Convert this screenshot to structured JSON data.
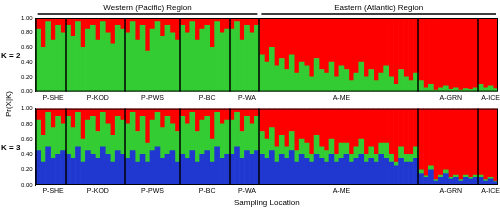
{
  "chart_data": [
    {
      "type": "bar",
      "title": "K = 2",
      "stacked": true,
      "grid": false,
      "y_label": "Pr(X|K)",
      "regions": [
        {
          "label": "Western (Pacific) Region",
          "groups": 5
        },
        {
          "label": "Eastern (Atlantic) Region",
          "groups": 3
        }
      ],
      "groups": [
        {
          "label": "P-SHE",
          "count": 6
        },
        {
          "label": "P-KOD",
          "count": 12
        },
        {
          "label": "P-PWS",
          "count": 11
        },
        {
          "label": "P-BC",
          "count": 10
        },
        {
          "label": "P-WA",
          "count": 6
        },
        {
          "label": "A-ME",
          "count": 32
        },
        {
          "label": "A-GRN",
          "count": 12
        },
        {
          "label": "A-ICE",
          "count": 4
        }
      ],
      "ylim": [
        0,
        1
      ],
      "yticks": [
        {
          "value": 0,
          "label": "0.00"
        },
        {
          "value": 0.2,
          "label": "0.20"
        },
        {
          "value": 0.4,
          "label": "0.40"
        },
        {
          "value": 0.6,
          "label": "0.60"
        },
        {
          "value": 0.8,
          "label": "0.80"
        },
        {
          "value": 1,
          "label": "1.00"
        }
      ],
      "series": [
        {
          "color": "#33cc33",
          "values": [
            0.85,
            0.6,
            0.95,
            0.7,
            0.9,
            0.8,
            0.9,
            0.75,
            0.95,
            0.6,
            0.85,
            0.9,
            0.7,
            0.95,
            0.8,
            0.65,
            0.9,
            0.85,
            0.8,
            0.95,
            0.7,
            0.9,
            0.55,
            0.85,
            0.95,
            0.75,
            0.9,
            0.8,
            0.7,
            0.9,
            0.8,
            0.95,
            0.7,
            0.85,
            0.9,
            0.6,
            0.95,
            0.8,
            0.85,
            0.85,
            0.95,
            0.7,
            0.9,
            0.8,
            0.9,
            0.5,
            0.4,
            0.6,
            0.35,
            0.45,
            0.3,
            0.5,
            0.25,
            0.4,
            0.35,
            0.2,
            0.45,
            0.3,
            0.25,
            0.4,
            0.2,
            0.35,
            0.3,
            0.15,
            0.25,
            0.4,
            0.2,
            0.3,
            0.15,
            0.25,
            0.35,
            0.2,
            0.1,
            0.3,
            0.2,
            0.15,
            0.25,
            0.15,
            0.05,
            0.1,
            0.02,
            0.05,
            0.08,
            0.03,
            0.05,
            0.02,
            0.04,
            0.03,
            0.05,
            0.1,
            0.05,
            0.08,
            0.04
          ]
        },
        {
          "color": "#ff0000",
          "values": [
            0.15,
            0.4,
            0.05,
            0.3,
            0.1,
            0.2,
            0.1,
            0.25,
            0.05,
            0.4,
            0.15,
            0.1,
            0.3,
            0.05,
            0.2,
            0.35,
            0.1,
            0.15,
            0.2,
            0.05,
            0.3,
            0.1,
            0.45,
            0.15,
            0.05,
            0.25,
            0.1,
            0.2,
            0.3,
            0.1,
            0.2,
            0.05,
            0.3,
            0.15,
            0.1,
            0.4,
            0.05,
            0.2,
            0.15,
            0.15,
            0.05,
            0.3,
            0.1,
            0.2,
            0.1,
            0.5,
            0.6,
            0.4,
            0.65,
            0.55,
            0.7,
            0.5,
            0.75,
            0.6,
            0.65,
            0.8,
            0.55,
            0.7,
            0.75,
            0.6,
            0.8,
            0.65,
            0.7,
            0.85,
            0.75,
            0.6,
            0.8,
            0.7,
            0.85,
            0.75,
            0.65,
            0.8,
            0.9,
            0.7,
            0.8,
            0.85,
            0.75,
            0.85,
            0.95,
            0.9,
            0.98,
            0.95,
            0.92,
            0.97,
            0.95,
            0.98,
            0.96,
            0.97,
            0.95,
            0.9,
            0.95,
            0.92,
            0.96
          ]
        }
      ]
    },
    {
      "type": "bar",
      "title": "K = 3",
      "stacked": true,
      "grid": false,
      "x_label": "Sampling Location",
      "groups": [
        {
          "label": "P-SHE",
          "count": 6
        },
        {
          "label": "P-KOD",
          "count": 12
        },
        {
          "label": "P-PWS",
          "count": 11
        },
        {
          "label": "P-BC",
          "count": 10
        },
        {
          "label": "P-WA",
          "count": 6
        },
        {
          "label": "A-ME",
          "count": 32
        },
        {
          "label": "A-GRN",
          "count": 12
        },
        {
          "label": "A-ICE",
          "count": 4
        }
      ],
      "ylim": [
        0,
        1
      ],
      "yticks": [
        {
          "value": 0,
          "label": "0.00"
        },
        {
          "value": 0.2,
          "label": "0.20"
        },
        {
          "value": 0.4,
          "label": "0.40"
        },
        {
          "value": 0.6,
          "label": "0.60"
        },
        {
          "value": 0.8,
          "label": "0.80"
        },
        {
          "value": 1,
          "label": "1.00"
        }
      ],
      "series": [
        {
          "color": "#2038d0",
          "values": [
            0.45,
            0.3,
            0.5,
            0.35,
            0.4,
            0.45,
            0.4,
            0.35,
            0.5,
            0.3,
            0.45,
            0.4,
            0.35,
            0.5,
            0.4,
            0.3,
            0.45,
            0.4,
            0.35,
            0.45,
            0.3,
            0.4,
            0.3,
            0.45,
            0.5,
            0.35,
            0.4,
            0.45,
            0.3,
            0.4,
            0.35,
            0.45,
            0.3,
            0.4,
            0.45,
            0.3,
            0.5,
            0.35,
            0.4,
            0.4,
            0.5,
            0.35,
            0.45,
            0.4,
            0.45,
            0.4,
            0.35,
            0.45,
            0.3,
            0.4,
            0.35,
            0.45,
            0.3,
            0.4,
            0.35,
            0.3,
            0.4,
            0.35,
            0.3,
            0.4,
            0.3,
            0.35,
            0.4,
            0.3,
            0.35,
            0.4,
            0.3,
            0.35,
            0.3,
            0.4,
            0.35,
            0.3,
            0.25,
            0.35,
            0.3,
            0.3,
            0.35,
            0.15,
            0.1,
            0.2,
            0.05,
            0.1,
            0.15,
            0.08,
            0.1,
            0.05,
            0.1,
            0.08,
            0.1,
            0.1,
            0.05,
            0.08,
            0.04
          ]
        },
        {
          "color": "#33cc33",
          "values": [
            0.4,
            0.35,
            0.45,
            0.4,
            0.5,
            0.35,
            0.5,
            0.4,
            0.45,
            0.3,
            0.4,
            0.5,
            0.35,
            0.45,
            0.4,
            0.35,
            0.45,
            0.45,
            0.45,
            0.5,
            0.4,
            0.5,
            0.25,
            0.4,
            0.45,
            0.4,
            0.5,
            0.35,
            0.4,
            0.5,
            0.45,
            0.5,
            0.4,
            0.45,
            0.45,
            0.3,
            0.45,
            0.45,
            0.45,
            0.45,
            0.45,
            0.35,
            0.45,
            0.4,
            0.45,
            0.3,
            0.25,
            0.3,
            0.2,
            0.25,
            0.15,
            0.25,
            0.15,
            0.2,
            0.2,
            0.1,
            0.25,
            0.15,
            0.15,
            0.2,
            0.1,
            0.2,
            0.15,
            0.1,
            0.15,
            0.2,
            0.1,
            0.15,
            0.1,
            0.15,
            0.2,
            0.1,
            0.05,
            0.15,
            0.1,
            0.1,
            0.15,
            0.05,
            0.02,
            0.05,
            0.02,
            0.03,
            0.05,
            0.02,
            0.03,
            0.02,
            0.03,
            0.02,
            0.03,
            0.03,
            0.02,
            0.02,
            0.01
          ]
        },
        {
          "color": "#ff0000",
          "values": [
            0.15,
            0.35,
            0.05,
            0.25,
            0.1,
            0.2,
            0.1,
            0.25,
            0.05,
            0.4,
            0.15,
            0.1,
            0.3,
            0.05,
            0.2,
            0.35,
            0.1,
            0.15,
            0.2,
            0.05,
            0.3,
            0.1,
            0.45,
            0.15,
            0.05,
            0.25,
            0.1,
            0.2,
            0.3,
            0.1,
            0.2,
            0.05,
            0.3,
            0.15,
            0.1,
            0.4,
            0.05,
            0.2,
            0.15,
            0.15,
            0.05,
            0.3,
            0.1,
            0.2,
            0.1,
            0.3,
            0.4,
            0.25,
            0.5,
            0.35,
            0.5,
            0.3,
            0.55,
            0.4,
            0.45,
            0.6,
            0.35,
            0.5,
            0.55,
            0.4,
            0.6,
            0.45,
            0.45,
            0.6,
            0.5,
            0.4,
            0.6,
            0.5,
            0.6,
            0.45,
            0.45,
            0.6,
            0.7,
            0.5,
            0.6,
            0.6,
            0.5,
            0.8,
            0.88,
            0.75,
            0.93,
            0.87,
            0.8,
            0.9,
            0.87,
            0.93,
            0.87,
            0.9,
            0.87,
            0.87,
            0.93,
            0.9,
            0.95
          ]
        }
      ]
    }
  ]
}
